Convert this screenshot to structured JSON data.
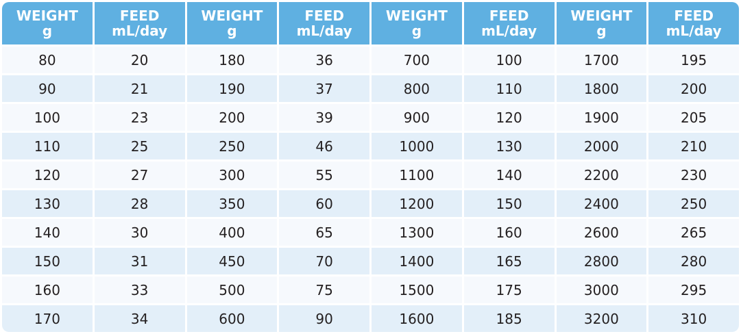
{
  "table": {
    "header": [
      [
        "WEIGHT",
        "g"
      ],
      [
        "FEED",
        "mL/day"
      ],
      [
        "WEIGHT",
        "g"
      ],
      [
        "FEED",
        "mL/day"
      ],
      [
        "WEIGHT",
        "g"
      ],
      [
        "FEED",
        "mL/day"
      ],
      [
        "WEIGHT",
        "g"
      ],
      [
        "FEED",
        "mL/day"
      ]
    ],
    "rows": [
      [
        80,
        20,
        180,
        36,
        700,
        100,
        1700,
        195
      ],
      [
        90,
        21,
        190,
        37,
        800,
        110,
        1800,
        200
      ],
      [
        100,
        23,
        200,
        39,
        900,
        120,
        1900,
        205
      ],
      [
        110,
        25,
        250,
        46,
        1000,
        130,
        2000,
        210
      ],
      [
        120,
        27,
        300,
        55,
        1100,
        140,
        2200,
        230
      ],
      [
        130,
        28,
        350,
        60,
        1200,
        150,
        2400,
        250
      ],
      [
        140,
        30,
        400,
        65,
        1300,
        160,
        2600,
        265
      ],
      [
        150,
        31,
        450,
        70,
        1400,
        165,
        2800,
        280
      ],
      [
        160,
        33,
        500,
        75,
        1500,
        175,
        3000,
        295
      ],
      [
        170,
        34,
        600,
        90,
        1600,
        185,
        3200,
        310
      ]
    ]
  }
}
